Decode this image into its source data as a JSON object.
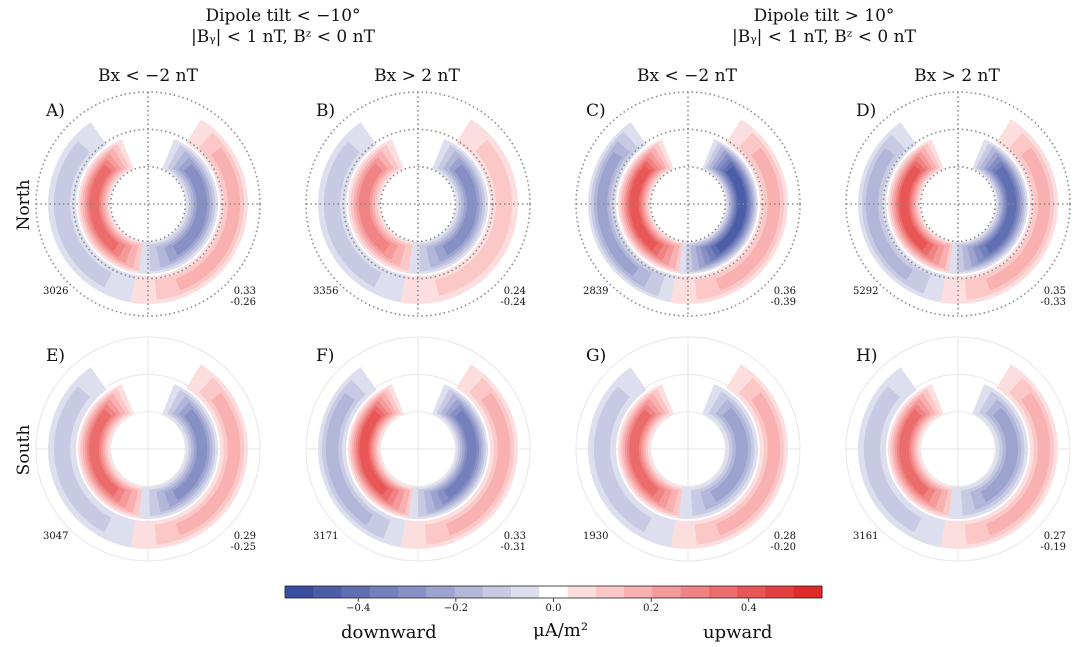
{
  "groups": [
    {
      "line1": "Dipole tilt < −10°",
      "line2": "|Bᵧ| < 1 nT, Bᶻ < 0 nT"
    },
    {
      "line1": "Dipole tilt > 10°",
      "line2": "|Bᵧ| < 1 nT, Bᶻ < 0 nT"
    }
  ],
  "columns": [
    "Bx < −2 nT",
    "Bx > 2 nT",
    "Bx < −2 nT",
    "Bx > 2 nT"
  ],
  "rows": [
    "North",
    "South"
  ],
  "panels": [
    {
      "letter": "A)",
      "count": "3026",
      "max": "0.33",
      "min": "-0.26",
      "hemi": "north",
      "down": 0.25,
      "up": 0.3,
      "shift": 0.0
    },
    {
      "letter": "B)",
      "count": "3356",
      "max": "0.24",
      "min": "-0.24",
      "hemi": "north",
      "down": 0.23,
      "up": 0.23,
      "shift": 0.0
    },
    {
      "letter": "C)",
      "count": "2839",
      "max": "0.36",
      "min": "-0.39",
      "hemi": "north",
      "down": 0.39,
      "up": 0.36,
      "shift": 0.0
    },
    {
      "letter": "D)",
      "count": "5292",
      "max": "0.35",
      "min": "-0.33",
      "hemi": "north",
      "down": 0.33,
      "up": 0.35,
      "shift": 0.0
    },
    {
      "letter": "E)",
      "count": "3047",
      "max": "0.29",
      "min": "-0.25",
      "hemi": "south",
      "down": 0.25,
      "up": 0.29,
      "shift": 0.0
    },
    {
      "letter": "F)",
      "count": "3171",
      "max": "0.33",
      "min": "-0.31",
      "hemi": "south",
      "down": 0.31,
      "up": 0.33,
      "shift": 0.0
    },
    {
      "letter": "G)",
      "count": "1930",
      "max": "0.28",
      "min": "-0.20",
      "hemi": "south",
      "down": 0.2,
      "up": 0.28,
      "shift": 0.0
    },
    {
      "letter": "H)",
      "count": "3161",
      "max": "0.27",
      "min": "-0.19",
      "hemi": "south",
      "down": 0.19,
      "up": 0.27,
      "shift": 0.0
    }
  ],
  "colorbar": {
    "ticks": [
      "−0.4",
      "−0.2",
      "0.0",
      "0.2",
      "0.4"
    ],
    "tick_values": [
      -0.4,
      -0.2,
      0.0,
      0.2,
      0.4
    ],
    "range": [
      -0.55,
      0.55
    ],
    "label_left": "downward",
    "label_center": "μA/m²",
    "label_right": "upward",
    "colors": [
      "#3a4ea0",
      "#4c5ea8",
      "#5f6fb2",
      "#7380bc",
      "#8790c4",
      "#9ca3cf",
      "#b2b6d9",
      "#c8cae3",
      "#dedfee",
      "#ffffff",
      "#fcdede",
      "#fbc7c7",
      "#f8b0b0",
      "#f59a9a",
      "#f08383",
      "#ec6c6c",
      "#e85656",
      "#e43f3f",
      "#e02a2a"
    ]
  },
  "chart_data": {
    "type": "heatmap",
    "title": "",
    "panels": [
      {
        "panel": "A)",
        "hemisphere": "North",
        "tilt": "< -10°",
        "bx": "< -2 nT",
        "n": 3026,
        "max": 0.33,
        "min": -0.26
      },
      {
        "panel": "B)",
        "hemisphere": "North",
        "tilt": "< -10°",
        "bx": "> 2 nT",
        "n": 3356,
        "max": 0.24,
        "min": -0.24
      },
      {
        "panel": "C)",
        "hemisphere": "North",
        "tilt": "> 10°",
        "bx": "< -2 nT",
        "n": 2839,
        "max": 0.36,
        "min": -0.39
      },
      {
        "panel": "D)",
        "hemisphere": "North",
        "tilt": "> 10°",
        "bx": "> 2 nT",
        "n": 5292,
        "max": 0.35,
        "min": -0.33
      },
      {
        "panel": "E)",
        "hemisphere": "South",
        "tilt": "< -10°",
        "bx": "< -2 nT",
        "n": 3047,
        "max": 0.29,
        "min": -0.25
      },
      {
        "panel": "F)",
        "hemisphere": "South",
        "tilt": "< -10°",
        "bx": "> 2 nT",
        "n": 3171,
        "max": 0.33,
        "min": -0.31
      },
      {
        "panel": "G)",
        "hemisphere": "South",
        "tilt": "> 10°",
        "bx": "< -2 nT",
        "n": 1930,
        "max": 0.28,
        "min": -0.2
      },
      {
        "panel": "H)",
        "hemisphere": "South",
        "tilt": "> 10°",
        "bx": "> 2 nT",
        "n": 3161,
        "max": 0.27,
        "min": -0.19
      }
    ],
    "colorbar_range": [
      -0.55,
      0.55
    ],
    "colorbar_ticks": [
      -0.4,
      -0.2,
      0.0,
      0.2,
      0.4
    ],
    "colorbar_unit": "μA/m²"
  }
}
